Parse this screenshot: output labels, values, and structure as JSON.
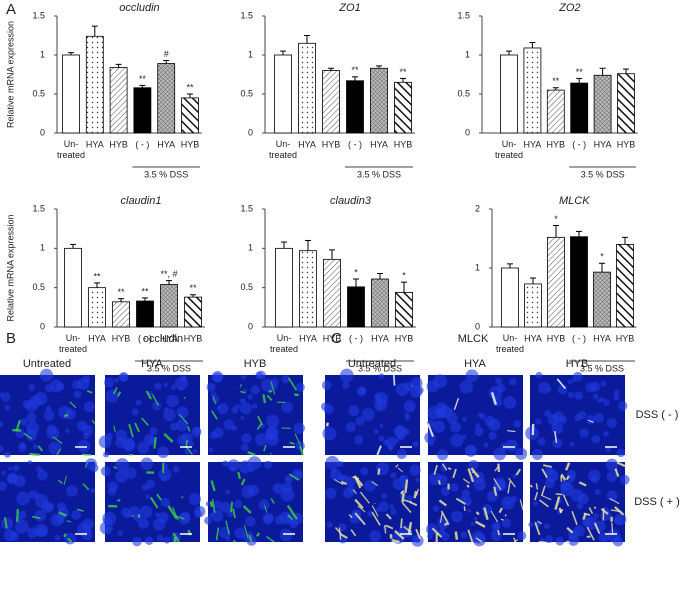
{
  "chart_data": [
    {
      "type": "bar",
      "title": "occludin",
      "y_label": "Relative mRNA expression",
      "categories": [
        "Un-treated",
        "HYA",
        "HYB",
        "( - )",
        "HYA",
        "HYB"
      ],
      "values": [
        1.0,
        1.24,
        0.84,
        0.58,
        0.89,
        0.45
      ],
      "errors": [
        0.03,
        0.13,
        0.04,
        0.03,
        0.04,
        0.05
      ],
      "annotations": [
        null,
        null,
        null,
        "**",
        "#",
        "**"
      ],
      "group_label": "3.5 % DSS",
      "ylim": [
        0,
        1.5
      ],
      "yticks": [
        0,
        0.5,
        1,
        1.5
      ]
    },
    {
      "type": "bar",
      "title": "ZO1",
      "categories": [
        "Un-treated",
        "HYA",
        "HYB",
        "( - )",
        "HYA",
        "HYB"
      ],
      "values": [
        1.0,
        1.15,
        0.8,
        0.67,
        0.83,
        0.65
      ],
      "errors": [
        0.05,
        0.1,
        0.03,
        0.05,
        0.03,
        0.05
      ],
      "annotations": [
        null,
        null,
        null,
        "**",
        null,
        "**"
      ],
      "group_label": "3.5 % DSS",
      "ylim": [
        0,
        1.5
      ],
      "yticks": [
        0,
        0.5,
        1,
        1.5
      ]
    },
    {
      "type": "bar",
      "title": "ZO2",
      "categories": [
        "Un-treated",
        "HYA",
        "HYB",
        "( - )",
        "HYA",
        "HYB"
      ],
      "values": [
        1.0,
        1.09,
        0.55,
        0.64,
        0.74,
        0.76
      ],
      "errors": [
        0.05,
        0.07,
        0.03,
        0.06,
        0.09,
        0.06
      ],
      "annotations": [
        null,
        null,
        "**",
        "**",
        null,
        null
      ],
      "group_label": "3.5 % DSS",
      "ylim": [
        0,
        1.5
      ],
      "yticks": [
        0,
        0.5,
        1,
        1.5
      ]
    },
    {
      "type": "bar",
      "title": "claudin1",
      "y_label": "Relative mRNA expression",
      "categories": [
        "Un-treated",
        "HYA",
        "HYB",
        "( - )",
        "HYA",
        "HYB"
      ],
      "values": [
        1.0,
        0.5,
        0.32,
        0.33,
        0.54,
        0.38
      ],
      "errors": [
        0.05,
        0.06,
        0.04,
        0.04,
        0.05,
        0.03
      ],
      "annotations": [
        null,
        "**",
        "**",
        "**",
        "**, #",
        "**"
      ],
      "group_label": "3.5 % DSS",
      "ylim": [
        0,
        1.5
      ],
      "yticks": [
        0,
        0.5,
        1,
        1.5
      ]
    },
    {
      "type": "bar",
      "title": "claudin3",
      "categories": [
        "Un-treated",
        "HYA",
        "HYB",
        "( - )",
        "HYA",
        "HYB"
      ],
      "values": [
        1.0,
        0.97,
        0.86,
        0.51,
        0.61,
        0.44
      ],
      "errors": [
        0.08,
        0.13,
        0.12,
        0.1,
        0.07,
        0.13
      ],
      "annotations": [
        null,
        null,
        null,
        "*",
        null,
        "*"
      ],
      "group_label": "3.5 % DSS",
      "ylim": [
        0,
        1.5
      ],
      "yticks": [
        0,
        0.5,
        1,
        1.5
      ]
    },
    {
      "type": "bar",
      "title": "MLCK",
      "categories": [
        "Un-treated",
        "HYA",
        "HYB",
        "( - )",
        "HYA",
        "HYB"
      ],
      "values": [
        1.0,
        0.73,
        1.52,
        1.53,
        0.93,
        1.4
      ],
      "errors": [
        0.07,
        0.1,
        0.2,
        0.09,
        0.15,
        0.12
      ],
      "annotations": [
        null,
        null,
        "*",
        null,
        "*",
        null
      ],
      "group_label": "3.5 % DSS",
      "ylim": [
        0,
        2
      ],
      "yticks": [
        0,
        1,
        2
      ]
    }
  ],
  "panel_letters": [
    "A",
    "B",
    "C"
  ],
  "panel_b": {
    "title": "occludin",
    "columns": [
      "Untreated",
      "HYA",
      "HYB"
    ]
  },
  "panel_c": {
    "title": "MLCK",
    "columns": [
      "Untreated",
      "HYA",
      "HYB"
    ],
    "rows": [
      "DSS ( - )",
      "DSS ( + )"
    ]
  }
}
